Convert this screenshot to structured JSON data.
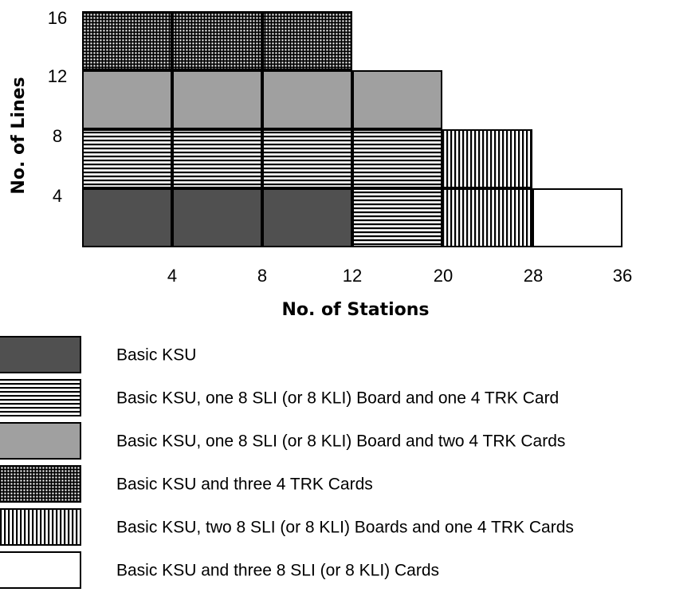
{
  "chart_data": {
    "type": "table",
    "xlabel": "No. of Stations",
    "ylabel": "No. of Lines",
    "x_ticks": [
      "4",
      "8",
      "12",
      "20",
      "28",
      "36"
    ],
    "y_ticks": [
      "4",
      "8",
      "12",
      "16"
    ],
    "columns": [
      "4",
      "8",
      "12",
      "20",
      "28",
      "36"
    ],
    "rows": [
      "4",
      "8",
      "12",
      "16"
    ],
    "grid": [
      [
        "ksu",
        "ksu",
        "ksu",
        "sli1trk1",
        "sli2trk1",
        "sli3"
      ],
      [
        "sli1trk1",
        "sli1trk1",
        "sli1trk1",
        "sli1trk1",
        "sli2trk1",
        ""
      ],
      [
        "sli1trk2",
        "sli1trk2",
        "sli1trk2",
        "sli1trk2",
        "",
        ""
      ],
      [
        "trk3",
        "trk3",
        "trk3",
        "",
        "",
        ""
      ]
    ],
    "legend": [
      {
        "key": "ksu",
        "label": "Basic KSU"
      },
      {
        "key": "sli1trk1",
        "label": "Basic KSU, one 8 SLI (or 8 KLI) Board and one 4 TRK Card"
      },
      {
        "key": "sli1trk2",
        "label": "Basic KSU, one 8 SLI (or 8 KLI) Board and two 4 TRK Cards"
      },
      {
        "key": "trk3",
        "label": "Basic KSU and three 4 TRK Cards"
      },
      {
        "key": "sli2trk1",
        "label": "Basic KSU, two 8 SLI (or 8 KLI) Boards and one 4 TRK Cards"
      },
      {
        "key": "sli3",
        "label": "Basic KSU and three 8 SLI (or 8 KLI) Cards"
      }
    ],
    "colors": {
      "ksu": "#505050",
      "sli1trk2": "#a0a0a0",
      "outline": "#000000",
      "background": "#ffffff"
    }
  }
}
